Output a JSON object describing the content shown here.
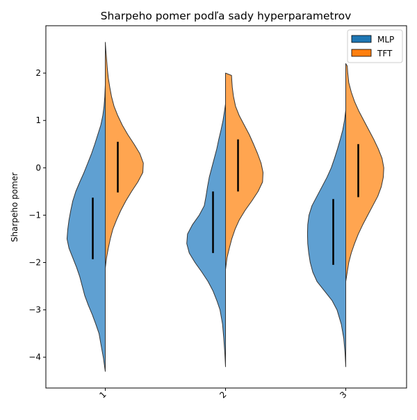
{
  "chart_data": {
    "type": "violin",
    "title": "Sharpeho pomer podľa sady hyperparametrov",
    "ylabel": "Sharpeho pomer",
    "xlabel": "",
    "categories": [
      "1",
      "2",
      "3"
    ],
    "ylim": [
      -4.65,
      3.0
    ],
    "yticks": [
      -4,
      -3,
      -2,
      -1,
      0,
      1,
      2
    ],
    "ytick_labels": [
      "−4",
      "−3",
      "−2",
      "−1",
      "0",
      "1",
      "2"
    ],
    "split": true,
    "legend": {
      "position": "top-right",
      "entries": [
        "MLP",
        "TFT"
      ]
    },
    "series": [
      {
        "name": "MLP",
        "side": "left",
        "color": "#5fa0d2",
        "swatch": "#1f77b4",
        "violins": [
          {
            "category": "1",
            "y_min": -4.3,
            "y_max": 1.75,
            "iqr": [
              -1.93,
              -0.63
            ],
            "profile": [
              [
                -4.3,
                0.0
              ],
              [
                -4.0,
                0.08
              ],
              [
                -3.8,
                0.15
              ],
              [
                -3.5,
                0.25
              ],
              [
                -3.3,
                0.38
              ],
              [
                -3.1,
                0.52
              ],
              [
                -2.9,
                0.68
              ],
              [
                -2.7,
                0.82
              ],
              [
                -2.5,
                0.92
              ],
              [
                -2.3,
                1.02
              ],
              [
                -2.1,
                1.15
              ],
              [
                -1.9,
                1.3
              ],
              [
                -1.7,
                1.45
              ],
              [
                -1.5,
                1.53
              ],
              [
                -1.3,
                1.5
              ],
              [
                -1.1,
                1.45
              ],
              [
                -0.9,
                1.38
              ],
              [
                -0.7,
                1.3
              ],
              [
                -0.5,
                1.18
              ],
              [
                -0.3,
                1.02
              ],
              [
                -0.1,
                0.85
              ],
              [
                0.1,
                0.7
              ],
              [
                0.3,
                0.55
              ],
              [
                0.5,
                0.42
              ],
              [
                0.7,
                0.3
              ],
              [
                0.9,
                0.18
              ],
              [
                1.1,
                0.1
              ],
              [
                1.3,
                0.05
              ],
              [
                1.5,
                0.02
              ],
              [
                1.75,
                0.0
              ]
            ]
          },
          {
            "category": "2",
            "y_min": -4.2,
            "y_max": 1.35,
            "iqr": [
              -1.8,
              -0.5
            ],
            "profile": [
              [
                -4.2,
                0.0
              ],
              [
                -3.9,
                0.03
              ],
              [
                -3.6,
                0.07
              ],
              [
                -3.3,
                0.12
              ],
              [
                -3.0,
                0.22
              ],
              [
                -2.8,
                0.35
              ],
              [
                -2.6,
                0.5
              ],
              [
                -2.4,
                0.7
              ],
              [
                -2.2,
                0.95
              ],
              [
                -2.0,
                1.22
              ],
              [
                -1.8,
                1.45
              ],
              [
                -1.6,
                1.55
              ],
              [
                -1.4,
                1.52
              ],
              [
                -1.2,
                1.32
              ],
              [
                -1.0,
                1.05
              ],
              [
                -0.8,
                0.85
              ],
              [
                -0.6,
                0.78
              ],
              [
                -0.4,
                0.72
              ],
              [
                -0.2,
                0.65
              ],
              [
                0.0,
                0.55
              ],
              [
                0.2,
                0.45
              ],
              [
                0.4,
                0.35
              ],
              [
                0.6,
                0.27
              ],
              [
                0.8,
                0.18
              ],
              [
                1.0,
                0.1
              ],
              [
                1.2,
                0.04
              ],
              [
                1.35,
                0.0
              ]
            ]
          },
          {
            "category": "3",
            "y_min": -4.2,
            "y_max": 1.22,
            "iqr": [
              -2.05,
              -0.66
            ],
            "profile": [
              [
                -4.2,
                0.0
              ],
              [
                -3.9,
                0.03
              ],
              [
                -3.6,
                0.08
              ],
              [
                -3.3,
                0.18
              ],
              [
                -3.0,
                0.35
              ],
              [
                -2.8,
                0.55
              ],
              [
                -2.6,
                0.85
              ],
              [
                -2.4,
                1.15
              ],
              [
                -2.2,
                1.32
              ],
              [
                -2.0,
                1.42
              ],
              [
                -1.8,
                1.48
              ],
              [
                -1.6,
                1.52
              ],
              [
                -1.4,
                1.53
              ],
              [
                -1.2,
                1.52
              ],
              [
                -1.0,
                1.47
              ],
              [
                -0.8,
                1.35
              ],
              [
                -0.6,
                1.15
              ],
              [
                -0.4,
                0.95
              ],
              [
                -0.2,
                0.75
              ],
              [
                0.0,
                0.58
              ],
              [
                0.2,
                0.45
              ],
              [
                0.4,
                0.33
              ],
              [
                0.6,
                0.22
              ],
              [
                0.8,
                0.12
              ],
              [
                1.0,
                0.05
              ],
              [
                1.22,
                0.0
              ]
            ]
          }
        ]
      },
      {
        "name": "TFT",
        "side": "right",
        "color": "#ffa550",
        "swatch": "#ff7f0e",
        "violins": [
          {
            "category": "1",
            "y_min": -2.12,
            "y_max": 2.65,
            "iqr": [
              -0.52,
              0.55
            ],
            "profile": [
              [
                -2.12,
                0.0
              ],
              [
                -1.9,
                0.05
              ],
              [
                -1.7,
                0.12
              ],
              [
                -1.5,
                0.2
              ],
              [
                -1.3,
                0.3
              ],
              [
                -1.1,
                0.45
              ],
              [
                -0.9,
                0.62
              ],
              [
                -0.7,
                0.82
              ],
              [
                -0.5,
                1.05
              ],
              [
                -0.3,
                1.3
              ],
              [
                -0.1,
                1.5
              ],
              [
                0.1,
                1.52
              ],
              [
                0.3,
                1.38
              ],
              [
                0.5,
                1.15
              ],
              [
                0.7,
                0.9
              ],
              [
                0.9,
                0.68
              ],
              [
                1.1,
                0.5
              ],
              [
                1.3,
                0.35
              ],
              [
                1.5,
                0.25
              ],
              [
                1.7,
                0.18
              ],
              [
                1.9,
                0.12
              ],
              [
                2.1,
                0.08
              ],
              [
                2.3,
                0.05
              ],
              [
                2.5,
                0.02
              ],
              [
                2.65,
                0.0
              ]
            ]
          },
          {
            "category": "2",
            "y_min": -2.15,
            "y_max": 2.0,
            "iqr": [
              -0.5,
              0.6
            ],
            "profile": [
              [
                -2.15,
                0.0
              ],
              [
                -1.9,
                0.06
              ],
              [
                -1.7,
                0.15
              ],
              [
                -1.5,
                0.25
              ],
              [
                -1.3,
                0.38
              ],
              [
                -1.1,
                0.55
              ],
              [
                -0.9,
                0.78
              ],
              [
                -0.7,
                1.05
              ],
              [
                -0.5,
                1.3
              ],
              [
                -0.3,
                1.48
              ],
              [
                -0.1,
                1.5
              ],
              [
                0.1,
                1.42
              ],
              [
                0.3,
                1.28
              ],
              [
                0.5,
                1.12
              ],
              [
                0.7,
                0.95
              ],
              [
                0.9,
                0.75
              ],
              [
                1.1,
                0.55
              ],
              [
                1.3,
                0.4
              ],
              [
                1.5,
                0.32
              ],
              [
                1.7,
                0.27
              ],
              [
                1.85,
                0.25
              ],
              [
                1.95,
                0.24
              ],
              [
                2.0,
                0.0
              ]
            ]
          },
          {
            "category": "3",
            "y_min": -2.4,
            "y_max": 2.2,
            "iqr": [
              -0.62,
              0.5
            ],
            "profile": [
              [
                -2.4,
                0.0
              ],
              [
                -2.2,
                0.06
              ],
              [
                -2.0,
                0.12
              ],
              [
                -1.8,
                0.22
              ],
              [
                -1.6,
                0.35
              ],
              [
                -1.4,
                0.5
              ],
              [
                -1.2,
                0.68
              ],
              [
                -1.0,
                0.88
              ],
              [
                -0.8,
                1.08
              ],
              [
                -0.6,
                1.28
              ],
              [
                -0.4,
                1.42
              ],
              [
                -0.2,
                1.5
              ],
              [
                0.0,
                1.52
              ],
              [
                0.2,
                1.45
              ],
              [
                0.4,
                1.3
              ],
              [
                0.6,
                1.12
              ],
              [
                0.8,
                0.92
              ],
              [
                1.0,
                0.72
              ],
              [
                1.2,
                0.52
              ],
              [
                1.4,
                0.35
              ],
              [
                1.6,
                0.22
              ],
              [
                1.8,
                0.12
              ],
              [
                2.0,
                0.08
              ],
              [
                2.15,
                0.06
              ],
              [
                2.2,
                0.0
              ]
            ]
          }
        ]
      }
    ]
  }
}
